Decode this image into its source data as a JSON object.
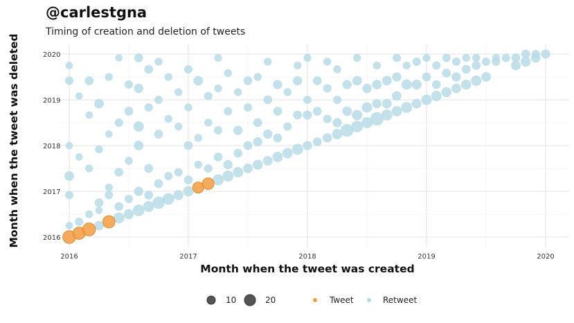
{
  "title": "@carlestgna",
  "subtitle": "Timing of creation and deletion of tweets",
  "colors": {
    "tweet": "#F5A14A",
    "retweet": "#B8DCE6",
    "size_legend": "#555555",
    "grid": "#E6E6E6"
  },
  "chart_data": {
    "type": "scatter",
    "xlabel": "Month when the tweet was created",
    "ylabel": "Month when the tweet was deleted",
    "xlim": [
      2016,
      2020
    ],
    "ylim": [
      2016,
      2020
    ],
    "x_ticks": [
      "2016",
      "2017",
      "2018",
      "2019",
      "2020"
    ],
    "y_ticks": [
      "2016",
      "2017",
      "2018",
      "2019",
      "2020"
    ],
    "grid": true,
    "legend": {
      "position": "bottom",
      "size_title": "",
      "sizes": [
        10,
        20
      ],
      "size_labels": [
        "10",
        "20"
      ],
      "color_labels": [
        "Tweet",
        "Retweet"
      ]
    },
    "series": [
      {
        "name": "Tweet",
        "points": [
          {
            "x": 2016.0,
            "y": 2016.0,
            "n": 20
          },
          {
            "x": 2016.083,
            "y": 2016.083,
            "n": 18
          },
          {
            "x": 2016.167,
            "y": 2016.167,
            "n": 20
          },
          {
            "x": 2016.333,
            "y": 2016.333,
            "n": 18
          },
          {
            "x": 2017.083,
            "y": 2017.083,
            "n": 14
          },
          {
            "x": 2017.167,
            "y": 2017.167,
            "n": 16
          }
        ]
      },
      {
        "name": "Retweet",
        "points": [
          {
            "x": 2016.25,
            "y": 2016.25,
            "n": 10
          },
          {
            "x": 2016.417,
            "y": 2016.417,
            "n": 14
          },
          {
            "x": 2016.5,
            "y": 2016.5,
            "n": 11
          },
          {
            "x": 2016.583,
            "y": 2016.583,
            "n": 16
          },
          {
            "x": 2016.667,
            "y": 2016.667,
            "n": 14
          },
          {
            "x": 2016.75,
            "y": 2016.75,
            "n": 18
          },
          {
            "x": 2016.833,
            "y": 2016.833,
            "n": 16
          },
          {
            "x": 2016.917,
            "y": 2016.917,
            "n": 11
          },
          {
            "x": 2017.0,
            "y": 2017.0,
            "n": 12
          },
          {
            "x": 2017.25,
            "y": 2017.25,
            "n": 14
          },
          {
            "x": 2017.333,
            "y": 2017.333,
            "n": 14
          },
          {
            "x": 2017.417,
            "y": 2017.417,
            "n": 12
          },
          {
            "x": 2017.5,
            "y": 2017.5,
            "n": 10
          },
          {
            "x": 2017.583,
            "y": 2017.583,
            "n": 11
          },
          {
            "x": 2017.667,
            "y": 2017.667,
            "n": 10
          },
          {
            "x": 2017.75,
            "y": 2017.75,
            "n": 12
          },
          {
            "x": 2017.833,
            "y": 2017.833,
            "n": 12
          },
          {
            "x": 2017.917,
            "y": 2017.917,
            "n": 14
          },
          {
            "x": 2018.0,
            "y": 2018.0,
            "n": 9
          },
          {
            "x": 2018.083,
            "y": 2018.083,
            "n": 8
          },
          {
            "x": 2018.167,
            "y": 2018.167,
            "n": 9
          },
          {
            "x": 2018.25,
            "y": 2018.25,
            "n": 12
          },
          {
            "x": 2018.333,
            "y": 2018.333,
            "n": 20
          },
          {
            "x": 2018.417,
            "y": 2018.417,
            "n": 16
          },
          {
            "x": 2018.5,
            "y": 2018.5,
            "n": 14
          },
          {
            "x": 2018.583,
            "y": 2018.583,
            "n": 22
          },
          {
            "x": 2018.667,
            "y": 2018.667,
            "n": 14
          },
          {
            "x": 2018.75,
            "y": 2018.75,
            "n": 12
          },
          {
            "x": 2018.833,
            "y": 2018.833,
            "n": 14
          },
          {
            "x": 2018.917,
            "y": 2018.917,
            "n": 10
          },
          {
            "x": 2019.0,
            "y": 2019.0,
            "n": 12
          },
          {
            "x": 2019.083,
            "y": 2019.083,
            "n": 12
          },
          {
            "x": 2019.167,
            "y": 2019.167,
            "n": 11
          },
          {
            "x": 2019.25,
            "y": 2019.25,
            "n": 10
          },
          {
            "x": 2019.333,
            "y": 2019.333,
            "n": 11
          },
          {
            "x": 2019.417,
            "y": 2019.417,
            "n": 12
          },
          {
            "x": 2019.5,
            "y": 2019.5,
            "n": 10
          },
          {
            "x": 2019.75,
            "y": 2019.75,
            "n": 10
          },
          {
            "x": 2019.833,
            "y": 2019.833,
            "n": 11
          },
          {
            "x": 2019.917,
            "y": 2019.917,
            "n": 10
          },
          {
            "x": 2020.0,
            "y": 2020.0,
            "n": 9
          },
          {
            "x": 2016.0,
            "y": 2017.333,
            "n": 10
          },
          {
            "x": 2016.0,
            "y": 2016.917,
            "n": 7
          },
          {
            "x": 2016.0,
            "y": 2018.0,
            "n": 5
          },
          {
            "x": 2016.0,
            "y": 2019.417,
            "n": 7
          },
          {
            "x": 2016.0,
            "y": 2019.75,
            "n": 5
          },
          {
            "x": 2016.0,
            "y": 2016.25,
            "n": 5
          },
          {
            "x": 2016.083,
            "y": 2016.333,
            "n": 7
          },
          {
            "x": 2016.083,
            "y": 2017.75,
            "n": 5
          },
          {
            "x": 2016.083,
            "y": 2019.083,
            "n": 5
          },
          {
            "x": 2016.167,
            "y": 2016.5,
            "n": 6
          },
          {
            "x": 2016.167,
            "y": 2017.5,
            "n": 6
          },
          {
            "x": 2016.167,
            "y": 2018.667,
            "n": 5
          },
          {
            "x": 2016.167,
            "y": 2019.417,
            "n": 8
          },
          {
            "x": 2016.25,
            "y": 2016.583,
            "n": 5
          },
          {
            "x": 2016.25,
            "y": 2017.917,
            "n": 6
          },
          {
            "x": 2016.25,
            "y": 2018.917,
            "n": 10
          },
          {
            "x": 2016.25,
            "y": 2016.75,
            "n": 8
          },
          {
            "x": 2016.333,
            "y": 2017.083,
            "n": 6
          },
          {
            "x": 2016.333,
            "y": 2018.25,
            "n": 5
          },
          {
            "x": 2016.333,
            "y": 2019.5,
            "n": 6
          },
          {
            "x": 2016.333,
            "y": 2016.917,
            "n": 7
          },
          {
            "x": 2016.417,
            "y": 2016.667,
            "n": 8
          },
          {
            "x": 2016.417,
            "y": 2017.417,
            "n": 8
          },
          {
            "x": 2016.417,
            "y": 2018.5,
            "n": 7
          },
          {
            "x": 2016.417,
            "y": 2019.917,
            "n": 5
          },
          {
            "x": 2016.5,
            "y": 2016.833,
            "n": 7
          },
          {
            "x": 2016.5,
            "y": 2017.667,
            "n": 6
          },
          {
            "x": 2016.5,
            "y": 2018.75,
            "n": 8
          },
          {
            "x": 2016.5,
            "y": 2019.333,
            "n": 7
          },
          {
            "x": 2016.583,
            "y": 2017.0,
            "n": 9
          },
          {
            "x": 2016.583,
            "y": 2018.0,
            "n": 10
          },
          {
            "x": 2016.583,
            "y": 2018.417,
            "n": 12
          },
          {
            "x": 2016.583,
            "y": 2019.25,
            "n": 9
          },
          {
            "x": 2016.583,
            "y": 2019.917,
            "n": 8
          },
          {
            "x": 2016.667,
            "y": 2016.917,
            "n": 8
          },
          {
            "x": 2016.667,
            "y": 2017.5,
            "n": 8
          },
          {
            "x": 2016.667,
            "y": 2018.833,
            "n": 7
          },
          {
            "x": 2016.667,
            "y": 2019.667,
            "n": 8
          },
          {
            "x": 2016.75,
            "y": 2017.167,
            "n": 8
          },
          {
            "x": 2016.75,
            "y": 2018.25,
            "n": 8
          },
          {
            "x": 2016.75,
            "y": 2019.0,
            "n": 7
          },
          {
            "x": 2016.75,
            "y": 2019.833,
            "n": 6
          },
          {
            "x": 2016.833,
            "y": 2017.333,
            "n": 7
          },
          {
            "x": 2016.833,
            "y": 2018.583,
            "n": 6
          },
          {
            "x": 2016.833,
            "y": 2019.5,
            "n": 6
          },
          {
            "x": 2016.917,
            "y": 2017.417,
            "n": 7
          },
          {
            "x": 2016.917,
            "y": 2018.417,
            "n": 6
          },
          {
            "x": 2016.917,
            "y": 2019.167,
            "n": 6
          },
          {
            "x": 2017.0,
            "y": 2017.25,
            "n": 8
          },
          {
            "x": 2017.0,
            "y": 2018.0,
            "n": 8
          },
          {
            "x": 2017.0,
            "y": 2018.833,
            "n": 6
          },
          {
            "x": 2017.0,
            "y": 2019.667,
            "n": 7
          },
          {
            "x": 2017.083,
            "y": 2017.583,
            "n": 6
          },
          {
            "x": 2017.083,
            "y": 2018.167,
            "n": 6
          },
          {
            "x": 2017.083,
            "y": 2019.417,
            "n": 10
          },
          {
            "x": 2017.167,
            "y": 2017.5,
            "n": 7
          },
          {
            "x": 2017.167,
            "y": 2018.5,
            "n": 6
          },
          {
            "x": 2017.167,
            "y": 2019.083,
            "n": 7
          },
          {
            "x": 2017.25,
            "y": 2017.75,
            "n": 8
          },
          {
            "x": 2017.25,
            "y": 2018.333,
            "n": 7
          },
          {
            "x": 2017.25,
            "y": 2019.25,
            "n": 6
          },
          {
            "x": 2017.25,
            "y": 2019.917,
            "n": 6
          },
          {
            "x": 2017.333,
            "y": 2017.583,
            "n": 9
          },
          {
            "x": 2017.333,
            "y": 2018.75,
            "n": 7
          },
          {
            "x": 2017.333,
            "y": 2019.583,
            "n": 6
          },
          {
            "x": 2017.417,
            "y": 2017.833,
            "n": 8
          },
          {
            "x": 2017.417,
            "y": 2018.333,
            "n": 9
          },
          {
            "x": 2017.417,
            "y": 2019.167,
            "n": 6
          },
          {
            "x": 2017.5,
            "y": 2018.0,
            "n": 8
          },
          {
            "x": 2017.5,
            "y": 2018.833,
            "n": 7
          },
          {
            "x": 2017.5,
            "y": 2019.417,
            "n": 8
          },
          {
            "x": 2017.583,
            "y": 2018.083,
            "n": 9
          },
          {
            "x": 2017.583,
            "y": 2018.5,
            "n": 8
          },
          {
            "x": 2017.583,
            "y": 2019.5,
            "n": 6
          },
          {
            "x": 2017.667,
            "y": 2018.25,
            "n": 9
          },
          {
            "x": 2017.667,
            "y": 2019.0,
            "n": 8
          },
          {
            "x": 2017.667,
            "y": 2019.833,
            "n": 6
          },
          {
            "x": 2017.75,
            "y": 2018.167,
            "n": 8
          },
          {
            "x": 2017.75,
            "y": 2018.75,
            "n": 8
          },
          {
            "x": 2017.75,
            "y": 2019.333,
            "n": 9
          },
          {
            "x": 2017.833,
            "y": 2018.417,
            "n": 7
          },
          {
            "x": 2017.833,
            "y": 2019.167,
            "n": 6
          },
          {
            "x": 2017.917,
            "y": 2018.667,
            "n": 8
          },
          {
            "x": 2017.917,
            "y": 2019.417,
            "n": 9
          },
          {
            "x": 2017.917,
            "y": 2019.75,
            "n": 6
          },
          {
            "x": 2018.0,
            "y": 2018.667,
            "n": 9
          },
          {
            "x": 2018.0,
            "y": 2019.0,
            "n": 7
          },
          {
            "x": 2018.0,
            "y": 2019.917,
            "n": 6
          },
          {
            "x": 2018.083,
            "y": 2018.75,
            "n": 8
          },
          {
            "x": 2018.083,
            "y": 2019.417,
            "n": 8
          },
          {
            "x": 2018.167,
            "y": 2018.583,
            "n": 7
          },
          {
            "x": 2018.167,
            "y": 2019.25,
            "n": 7
          },
          {
            "x": 2018.167,
            "y": 2019.833,
            "n": 6
          },
          {
            "x": 2018.25,
            "y": 2018.5,
            "n": 9
          },
          {
            "x": 2018.25,
            "y": 2019.0,
            "n": 7
          },
          {
            "x": 2018.25,
            "y": 2019.667,
            "n": 6
          },
          {
            "x": 2018.333,
            "y": 2018.75,
            "n": 10
          },
          {
            "x": 2018.333,
            "y": 2019.333,
            "n": 9
          },
          {
            "x": 2018.417,
            "y": 2018.667,
            "n": 12
          },
          {
            "x": 2018.417,
            "y": 2019.417,
            "n": 10
          },
          {
            "x": 2018.417,
            "y": 2019.917,
            "n": 6
          },
          {
            "x": 2018.5,
            "y": 2018.833,
            "n": 12
          },
          {
            "x": 2018.5,
            "y": 2019.25,
            "n": 9
          },
          {
            "x": 2018.583,
            "y": 2018.917,
            "n": 9
          },
          {
            "x": 2018.583,
            "y": 2019.333,
            "n": 10
          },
          {
            "x": 2018.583,
            "y": 2019.75,
            "n": 6
          },
          {
            "x": 2018.667,
            "y": 2018.917,
            "n": 10
          },
          {
            "x": 2018.667,
            "y": 2019.417,
            "n": 10
          },
          {
            "x": 2018.75,
            "y": 2019.083,
            "n": 10
          },
          {
            "x": 2018.75,
            "y": 2019.5,
            "n": 9
          },
          {
            "x": 2018.75,
            "y": 2019.917,
            "n": 7
          },
          {
            "x": 2018.833,
            "y": 2019.333,
            "n": 12
          },
          {
            "x": 2018.833,
            "y": 2019.75,
            "n": 6
          },
          {
            "x": 2018.917,
            "y": 2019.333,
            "n": 11
          },
          {
            "x": 2018.917,
            "y": 2019.833,
            "n": 7
          },
          {
            "x": 2019.0,
            "y": 2019.5,
            "n": 8
          },
          {
            "x": 2019.0,
            "y": 2019.917,
            "n": 6
          },
          {
            "x": 2019.083,
            "y": 2019.333,
            "n": 8
          },
          {
            "x": 2019.083,
            "y": 2019.75,
            "n": 7
          },
          {
            "x": 2019.167,
            "y": 2019.583,
            "n": 8
          },
          {
            "x": 2019.167,
            "y": 2019.917,
            "n": 7
          },
          {
            "x": 2019.25,
            "y": 2019.5,
            "n": 9
          },
          {
            "x": 2019.25,
            "y": 2019.833,
            "n": 7
          },
          {
            "x": 2019.333,
            "y": 2019.667,
            "n": 8
          },
          {
            "x": 2019.333,
            "y": 2019.917,
            "n": 6
          },
          {
            "x": 2019.417,
            "y": 2019.75,
            "n": 8
          },
          {
            "x": 2019.417,
            "y": 2019.917,
            "n": 6
          },
          {
            "x": 2019.5,
            "y": 2019.833,
            "n": 7
          },
          {
            "x": 2019.583,
            "y": 2019.833,
            "n": 7
          },
          {
            "x": 2019.583,
            "y": 2019.917,
            "n": 6
          },
          {
            "x": 2019.667,
            "y": 2019.917,
            "n": 7
          },
          {
            "x": 2019.75,
            "y": 2019.917,
            "n": 8
          },
          {
            "x": 2019.833,
            "y": 2020.0,
            "n": 8
          },
          {
            "x": 2019.917,
            "y": 2020.0,
            "n": 7
          }
        ]
      }
    ]
  }
}
